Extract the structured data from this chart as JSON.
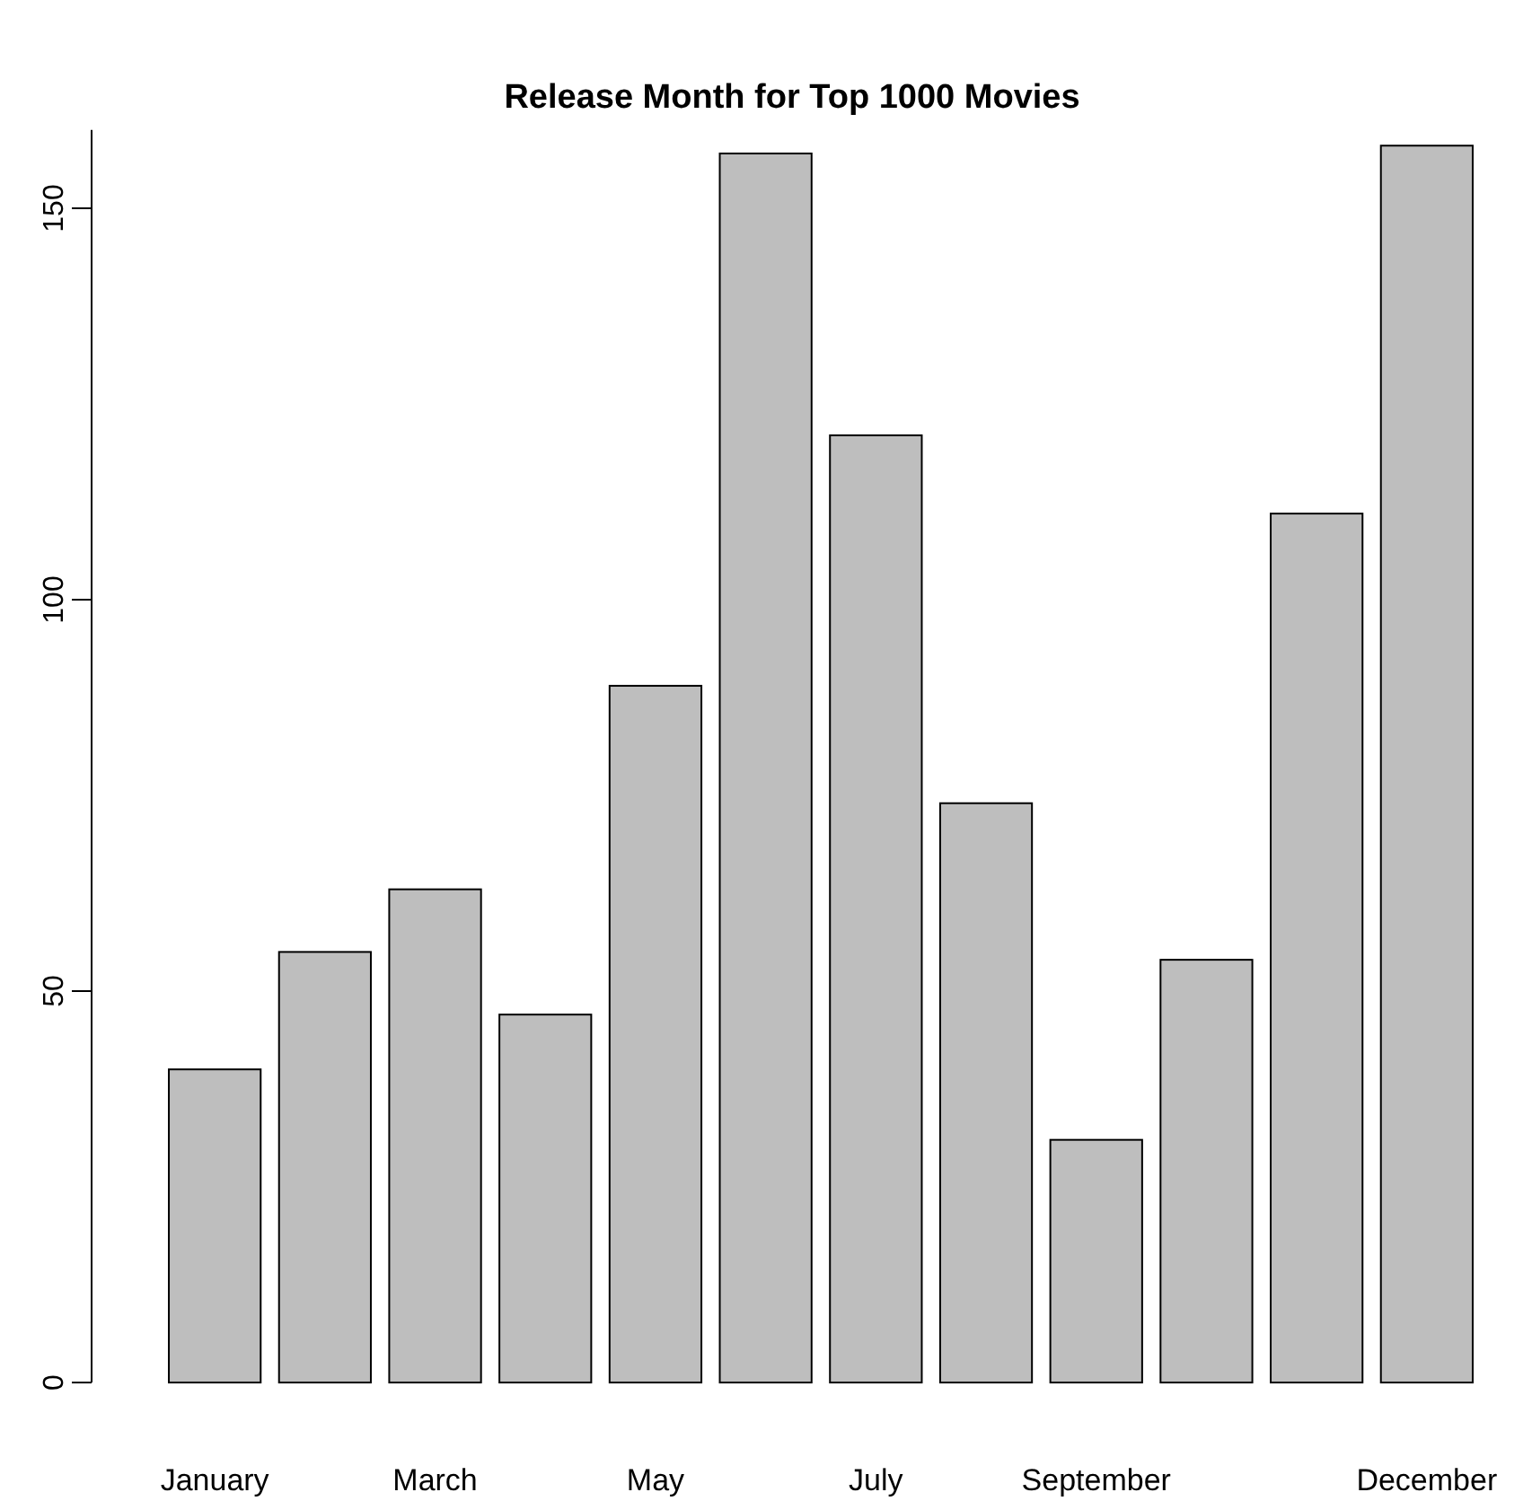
{
  "chart_data": {
    "type": "bar",
    "title": "Release Month for Top 1000 Movies",
    "categories": [
      "January",
      null,
      "March",
      null,
      "May",
      null,
      "July",
      null,
      "September",
      null,
      null,
      "December"
    ],
    "values": [
      40,
      55,
      63,
      47,
      89,
      157,
      121,
      74,
      31,
      54,
      111,
      158
    ],
    "color": "#bebebe",
    "ylim": [
      0,
      160
    ],
    "yticks": [
      0,
      50,
      100,
      150
    ],
    "grid": false
  }
}
